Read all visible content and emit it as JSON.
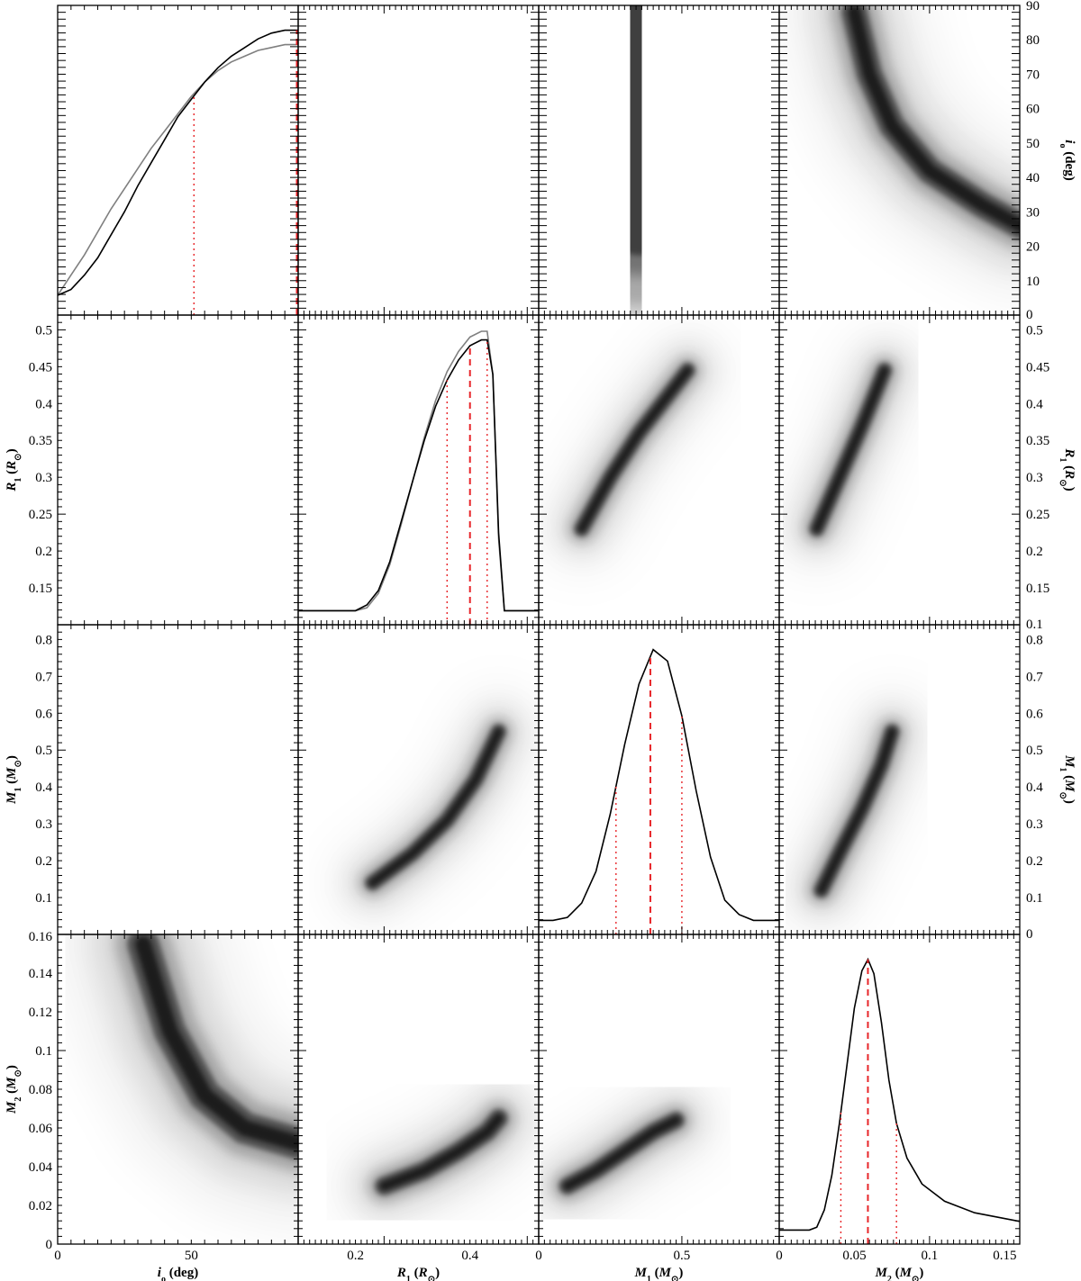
{
  "colors": {
    "dens": "#000000",
    "prior": "#7f7f7f",
    "marker": "#e8262a",
    "frame": "#000000"
  },
  "chart_data": {
    "type": "corner",
    "params": [
      {
        "name": "i_o",
        "label_main": "i",
        "label_sub": "o",
        "unit": " (deg)",
        "range": [
          0,
          90
        ],
        "bottom_ticks": [
          0,
          50
        ],
        "bottom_tick_labels": [
          "0",
          "50"
        ],
        "right_ticks": [
          0,
          10,
          20,
          30,
          40,
          50,
          60,
          70,
          80,
          90
        ],
        "right_tick_labels": [
          "0",
          "10",
          "20",
          "30",
          "40",
          "50",
          "60",
          "70",
          "80",
          "90"
        ],
        "median": 90,
        "low": 51,
        "high": null
      },
      {
        "name": "R_1",
        "label_main": "R",
        "label_sub": "1",
        "unit_main": " (R",
        "unit_sub": "⊙",
        "unit_end": ")",
        "range": [
          0.1,
          0.52
        ],
        "bottom_ticks": [
          0.2,
          0.4
        ],
        "bottom_tick_labels": [
          "0.2",
          "0.4"
        ],
        "left_ticks": [
          0.15,
          0.2,
          0.25,
          0.3,
          0.35,
          0.4,
          0.45,
          0.5
        ],
        "left_tick_labels": [
          "0.15",
          "0.2",
          "0.25",
          "0.3",
          "0.35",
          "0.4",
          "0.45",
          "0.5"
        ],
        "right_ticks": [
          0.1,
          0.15,
          0.2,
          0.25,
          0.3,
          0.35,
          0.4,
          0.45,
          0.5
        ],
        "right_tick_labels": [
          "0.1",
          "0.15",
          "0.2",
          "0.25",
          "0.3",
          "0.35",
          "0.4",
          "0.45",
          "0.5"
        ],
        "median": 0.4,
        "low": 0.36,
        "high": 0.43
      },
      {
        "name": "M_1",
        "label_main": "M",
        "label_sub": "1",
        "unit_main": " (M",
        "unit_sub": "⊙",
        "unit_end": ")",
        "range": [
          0,
          0.84
        ],
        "bottom_ticks": [
          0,
          0.5
        ],
        "bottom_tick_labels": [
          "0",
          "0.5"
        ],
        "left_ticks": [
          0.1,
          0.2,
          0.3,
          0.4,
          0.5,
          0.6,
          0.7,
          0.8
        ],
        "left_tick_labels": [
          "0.1",
          "0.2",
          "0.3",
          "0.4",
          "0.5",
          "0.6",
          "0.7",
          "0.8"
        ],
        "right_ticks": [
          0,
          0.1,
          0.2,
          0.3,
          0.4,
          0.5,
          0.6,
          0.7,
          0.8
        ],
        "right_tick_labels": [
          "0",
          "0.1",
          "0.2",
          "0.3",
          "0.4",
          "0.5",
          "0.6",
          "0.7",
          "0.8"
        ],
        "median": 0.39,
        "low": 0.27,
        "high": 0.5
      },
      {
        "name": "M_2",
        "label_main": "M",
        "label_sub": "2",
        "unit_main": " (M",
        "unit_sub": "⊙",
        "unit_end": ")",
        "range": [
          0,
          0.16
        ],
        "bottom_ticks": [
          0,
          0.05,
          0.1,
          0.15
        ],
        "bottom_tick_labels": [
          "0",
          "0.05",
          "0.1",
          "0.15"
        ],
        "left_ticks": [
          0,
          0.02,
          0.04,
          0.06,
          0.08,
          0.1,
          0.12,
          0.14,
          0.16
        ],
        "left_tick_labels": [
          "0",
          "0.02",
          "0.04",
          "0.06",
          "0.08",
          "0.1",
          "0.12",
          "0.14",
          "0.16"
        ],
        "median": 0.059,
        "low": 0.041,
        "high": 0.078
      }
    ],
    "marginals": [
      {
        "param": "i_o",
        "posterior_x": [
          0,
          5,
          10,
          15,
          20,
          25,
          30,
          35,
          40,
          45,
          50,
          55,
          60,
          65,
          70,
          75,
          80,
          85,
          90
        ],
        "posterior_y": [
          0.05,
          0.07,
          0.12,
          0.18,
          0.26,
          0.34,
          0.43,
          0.51,
          0.59,
          0.67,
          0.73,
          0.79,
          0.84,
          0.88,
          0.91,
          0.94,
          0.96,
          0.97,
          0.97
        ],
        "prior_x": [
          0,
          5,
          10,
          15,
          20,
          25,
          30,
          35,
          40,
          45,
          50,
          55,
          60,
          65,
          70,
          75,
          80,
          85,
          90
        ],
        "prior_y": [
          0.05,
          0.12,
          0.19,
          0.27,
          0.35,
          0.42,
          0.49,
          0.56,
          0.62,
          0.68,
          0.74,
          0.79,
          0.83,
          0.86,
          0.88,
          0.9,
          0.91,
          0.92,
          0.92
        ]
      },
      {
        "param": "R_1",
        "posterior_x": [
          0.1,
          0.2,
          0.22,
          0.24,
          0.26,
          0.28,
          0.3,
          0.32,
          0.34,
          0.36,
          0.38,
          0.4,
          0.42,
          0.43,
          0.44,
          0.45,
          0.46,
          0.5,
          0.52
        ],
        "posterior_y": [
          0.03,
          0.03,
          0.05,
          0.1,
          0.2,
          0.34,
          0.48,
          0.62,
          0.74,
          0.83,
          0.9,
          0.95,
          0.97,
          0.97,
          0.85,
          0.3,
          0.03,
          0.03,
          0.03
        ],
        "prior_x": [
          0.1,
          0.2,
          0.22,
          0.24,
          0.26,
          0.28,
          0.3,
          0.32,
          0.34,
          0.36,
          0.38,
          0.4,
          0.42,
          0.43,
          0.44,
          0.45,
          0.46,
          0.5,
          0.52
        ],
        "prior_y": [
          0.03,
          0.03,
          0.04,
          0.09,
          0.19,
          0.33,
          0.48,
          0.63,
          0.76,
          0.86,
          0.93,
          0.98,
          1.0,
          1.0,
          0.85,
          0.28,
          0.03,
          0.03,
          0.03
        ]
      },
      {
        "param": "M_1",
        "posterior_x": [
          0,
          0.05,
          0.1,
          0.15,
          0.2,
          0.25,
          0.3,
          0.35,
          0.4,
          0.45,
          0.5,
          0.55,
          0.6,
          0.65,
          0.7,
          0.75,
          0.8,
          0.84
        ],
        "posterior_y": [
          0.03,
          0.03,
          0.04,
          0.09,
          0.2,
          0.4,
          0.64,
          0.85,
          0.97,
          0.93,
          0.74,
          0.48,
          0.25,
          0.1,
          0.05,
          0.03,
          0.03,
          0.03
        ]
      },
      {
        "param": "M_2",
        "posterior_x": [
          0,
          0.02,
          0.025,
          0.03,
          0.035,
          0.04,
          0.045,
          0.05,
          0.055,
          0.059,
          0.063,
          0.068,
          0.073,
          0.078,
          0.085,
          0.095,
          0.11,
          0.13,
          0.16
        ],
        "posterior_y": [
          0.03,
          0.03,
          0.04,
          0.1,
          0.22,
          0.4,
          0.6,
          0.8,
          0.93,
          0.97,
          0.92,
          0.75,
          0.55,
          0.4,
          0.28,
          0.19,
          0.13,
          0.09,
          0.06
        ]
      }
    ],
    "joint_density_shading": "grayscale, darker = higher probability",
    "vertical_markers": "dashed = median, dotted = confidence bounds"
  }
}
